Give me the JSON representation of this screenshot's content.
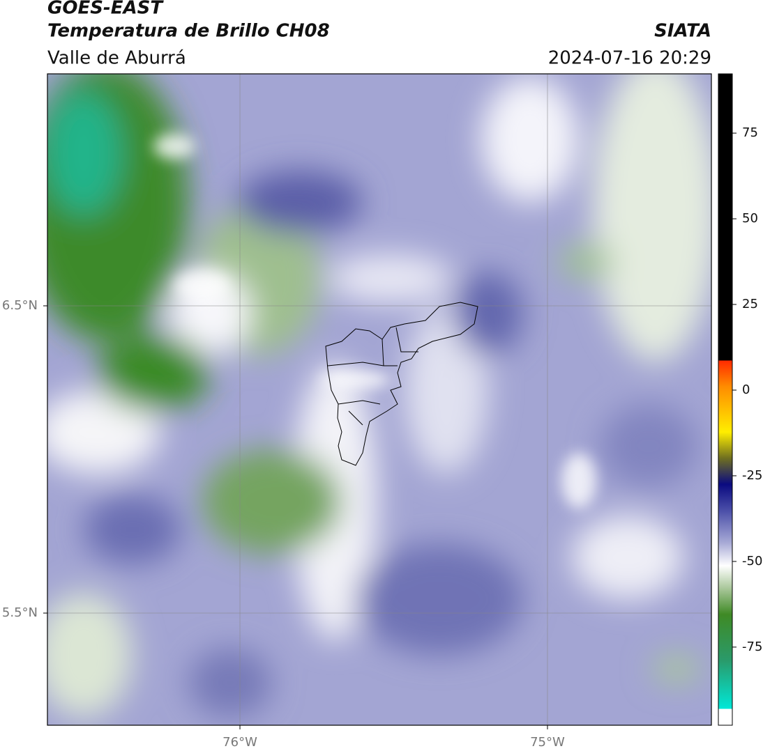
{
  "header": {
    "title": "GOES-EAST",
    "subtitle": "Temperatura de Brillo CH08",
    "region": "Valle de Aburrá",
    "source": "SIATA",
    "datetime": "2024-07-16 20:29"
  },
  "map": {
    "xlim": [
      -76.626,
      -74.467
    ],
    "ylim": [
      5.135,
      7.255
    ],
    "xticks": [
      {
        "value": -76,
        "label": "76°W"
      },
      {
        "value": -75,
        "label": "75°W"
      }
    ],
    "yticks": [
      {
        "value": 6.5,
        "label": "6.5°N"
      },
      {
        "value": 5.5,
        "label": "5.5°N"
      }
    ],
    "grid": true
  },
  "colorbar": {
    "clim": [
      -97.8,
      92.3
    ],
    "ticks": [
      75,
      50,
      25,
      0,
      -25,
      -50,
      -75
    ]
  }
}
